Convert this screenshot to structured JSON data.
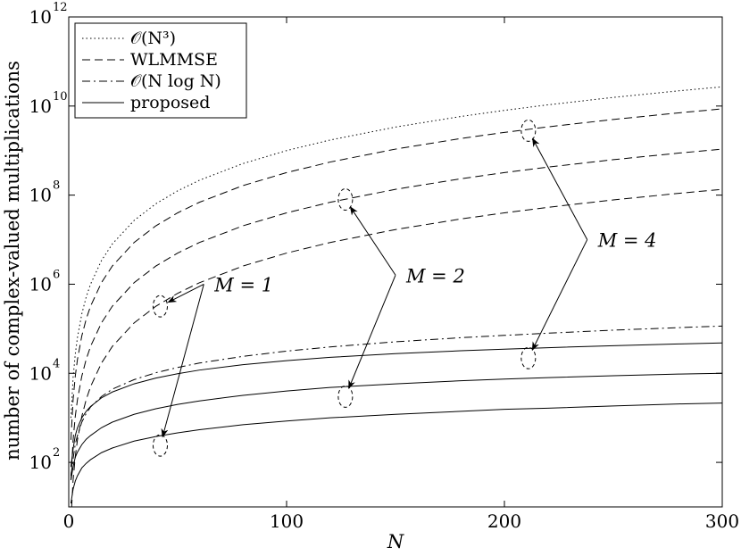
{
  "chart_data": {
    "type": "line",
    "xlabel": "N",
    "ylabel": "number of complex-valued multiplications",
    "xlim": [
      0,
      300
    ],
    "ylim": [
      10,
      1000000000000
    ],
    "yscale": "log",
    "grid": false,
    "legend_position": "top-left",
    "x_ticks": [
      "0",
      "100",
      "200",
      "300"
    ],
    "y_ticks": [
      {
        "base": "10",
        "exp": "2",
        "value": 100
      },
      {
        "base": "10",
        "exp": "4",
        "value": 10000
      },
      {
        "base": "10",
        "exp": "6",
        "value": 1000000
      },
      {
        "base": "10",
        "exp": "8",
        "value": 100000000
      },
      {
        "base": "10",
        "exp": "10",
        "value": 10000000000
      },
      {
        "base": "10",
        "exp": "12",
        "value": 1000000000000
      }
    ],
    "legend": [
      {
        "label": "𝒪(N³)",
        "style": "dotted"
      },
      {
        "label": "WLMMSE",
        "style": "dashed"
      },
      {
        "label": "𝒪(N log N)",
        "style": "dashdot"
      },
      {
        "label": "proposed",
        "style": "solid"
      }
    ],
    "x": [
      1,
      2,
      3,
      4,
      6,
      8,
      10,
      15,
      20,
      30,
      40,
      50,
      60,
      80,
      100,
      120,
      150,
      180,
      200,
      220,
      250,
      280,
      300
    ],
    "series": [
      {
        "group": "O(N^3)",
        "style": "dotted",
        "values": [
          1000,
          8000,
          27000,
          64000,
          216000,
          512000,
          1000000,
          3375000,
          8000000,
          27000000,
          64000000,
          125000000,
          216000000,
          512000000,
          1000000000,
          1728000000,
          3375000000,
          5832000000,
          8000000000,
          10648000000,
          15625000000,
          21952000000,
          27000000000
        ]
      },
      {
        "group": "WLMMSE",
        "style": "dashed",
        "M": 4,
        "values": [
          320,
          2560,
          8640,
          20480,
          69120,
          163840,
          320000,
          1080000,
          2560000,
          8640000,
          20480000,
          40000000,
          69120000,
          163840000,
          320000000,
          552960000,
          1080000000,
          1866240000,
          2560000000,
          3407360000,
          5000000000,
          7024640000,
          8640000000
        ]
      },
      {
        "group": "WLMMSE",
        "style": "dashed",
        "M": 2,
        "values": [
          40,
          320,
          1080,
          2560,
          8640,
          20480,
          40000,
          135000,
          320000,
          1080000,
          2560000,
          5000000,
          8640000,
          20480000,
          40000000,
          69120000,
          135000000,
          233280000,
          320000000,
          425920000,
          625000000,
          878080000,
          1080000000
        ]
      },
      {
        "group": "WLMMSE",
        "style": "dashed",
        "M": 1,
        "values": [
          5,
          40,
          135,
          320,
          1080,
          2560,
          5000,
          16875,
          40000,
          135000,
          320000,
          625000,
          1080000,
          2560000,
          5000000,
          8640000,
          16875000,
          29160000,
          40000000,
          53240000,
          78125000,
          109760000,
          135000000
        ]
      },
      {
        "group": "O(N log N)",
        "style": "dashdot",
        "values": [
          50,
          120,
          260,
          400,
          800,
          1250,
          1750,
          3000,
          4400,
          7200,
          10300,
          13500,
          17000,
          24000,
          31500,
          39000,
          51000,
          63000,
          71000,
          79500,
          93000,
          106000,
          115000
        ]
      },
      {
        "group": "proposed",
        "style": "solid",
        "M": 4,
        "values": [
          80,
          200,
          400,
          600,
          1000,
          1400,
          1800,
          2800,
          3800,
          5800,
          7800,
          9800,
          11800,
          15600,
          19200,
          22800,
          27600,
          32000,
          34800,
          37600,
          41600,
          45600,
          48000
        ]
      },
      {
        "group": "proposed",
        "style": "solid",
        "M": 2,
        "values": [
          40,
          80,
          130,
          170,
          250,
          330,
          400,
          600,
          800,
          1200,
          1600,
          2000,
          2400,
          3200,
          4000,
          4800,
          5800,
          6800,
          7400,
          8000,
          8800,
          9600,
          10000
        ]
      },
      {
        "group": "proposed",
        "style": "solid",
        "M": 1,
        "values": [
          12,
          25,
          38,
          50,
          75,
          95,
          115,
          165,
          210,
          300,
          380,
          460,
          540,
          700,
          850,
          1000,
          1200,
          1400,
          1550,
          1650,
          1850,
          2050,
          2150
        ]
      }
    ],
    "annotations": [
      {
        "label": "M = 1",
        "anchor_x": 62,
        "anchor_y": 1000000,
        "targets": [
          {
            "x": 42,
            "y": 320000
          },
          {
            "x": 42,
            "y": 240
          }
        ]
      },
      {
        "label": "M = 2",
        "anchor_x": 150,
        "anchor_y": 1600000,
        "targets": [
          {
            "x": 127,
            "y": 80000000
          },
          {
            "x": 127,
            "y": 3000
          }
        ]
      },
      {
        "label": "M = 4",
        "anchor_x": 238,
        "anchor_y": 10000000,
        "targets": [
          {
            "x": 211,
            "y": 2800000000
          },
          {
            "x": 211,
            "y": 22000
          }
        ]
      }
    ]
  }
}
